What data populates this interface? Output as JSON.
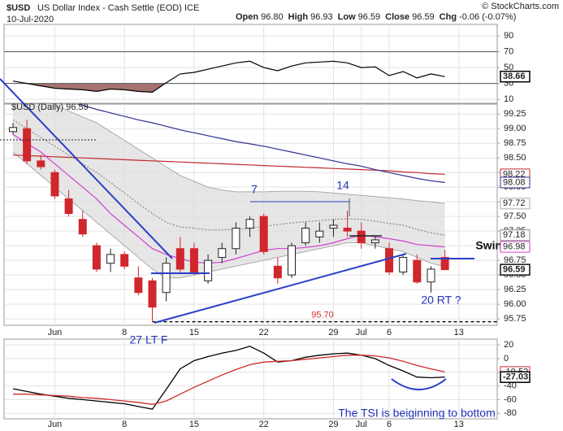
{
  "header": {
    "symbol": "$USD",
    "name": "US Dollar Index - Cash Settle (EOD) ICE",
    "date": "10-Jul-2020",
    "quote": [
      {
        "label": "Open",
        "value": "96.80"
      },
      {
        "label": "High",
        "value": "96.93"
      },
      {
        "label": "Low",
        "value": "96.59"
      },
      {
        "label": "Close",
        "value": "96.59"
      },
      {
        "label": "Chg",
        "value": "-0.06 (-0.07%)"
      }
    ],
    "source": "© StockCharts.com"
  },
  "chart_data": [
    {
      "type": "line",
      "color": "#000000",
      "fill_color": "#a5736f",
      "level_color": "#555555",
      "values": [
        33,
        30,
        27,
        24,
        23,
        22,
        20,
        23,
        22,
        20,
        19,
        31,
        42,
        44,
        48,
        52,
        56,
        58,
        50,
        46,
        52,
        56,
        57,
        58,
        56,
        50,
        51,
        40,
        45,
        37,
        42,
        38.66,
        null
      ],
      "oversold": 30,
      "overbought": 70,
      "ylim": [
        5,
        104.5
      ],
      "yticks": [
        90,
        70,
        50,
        30,
        10
      ],
      "grid": true
    },
    {
      "type": "candlestick",
      "legend": "$USD (Daily) 96.59",
      "categories": [
        null,
        null,
        null,
        "Jun",
        null,
        null,
        null,
        null,
        "8",
        null,
        null,
        null,
        null,
        "15",
        null,
        null,
        null,
        null,
        "22",
        null,
        null,
        null,
        null,
        "29",
        null,
        "Jul",
        null,
        "6",
        null,
        null,
        null,
        null,
        "13"
      ],
      "open": [
        98.95,
        99.0,
        98.45,
        98.25,
        97.8,
        97.45,
        97.0,
        96.7,
        96.85,
        96.45,
        96.4,
        96.2,
        96.95,
        96.95,
        96.4,
        96.8,
        96.95,
        97.3,
        97.5,
        96.65,
        96.5,
        97.05,
        97.15,
        97.3,
        97.3,
        97.25,
        97.05,
        96.95,
        96.55,
        96.75,
        96.38,
        96.8,
        null
      ],
      "high": [
        99.1,
        99.15,
        98.55,
        98.3,
        97.95,
        97.6,
        97.05,
        96.95,
        96.9,
        96.65,
        96.45,
        96.8,
        97.15,
        97.05,
        96.85,
        97.05,
        97.4,
        97.5,
        97.55,
        96.8,
        97.05,
        97.4,
        97.4,
        97.45,
        97.6,
        97.4,
        97.15,
        97.05,
        96.85,
        96.85,
        96.65,
        96.93,
        null
      ],
      "low": [
        98.9,
        98.4,
        98.3,
        97.8,
        97.5,
        97.15,
        96.55,
        96.55,
        96.6,
        96.15,
        95.7,
        96.05,
        96.55,
        96.5,
        96.35,
        96.7,
        96.85,
        97.15,
        96.85,
        96.35,
        96.45,
        97.0,
        97.05,
        97.15,
        97.15,
        96.95,
        96.95,
        96.5,
        96.5,
        96.35,
        96.2,
        96.59,
        null
      ],
      "close": [
        99.02,
        98.45,
        98.35,
        97.85,
        97.55,
        97.2,
        96.6,
        96.85,
        96.65,
        96.2,
        95.95,
        96.7,
        96.6,
        96.55,
        96.75,
        96.95,
        97.3,
        97.45,
        96.9,
        96.45,
        97.0,
        97.3,
        97.25,
        97.35,
        97.25,
        97.05,
        97.1,
        96.55,
        96.8,
        96.38,
        96.6,
        96.59,
        null
      ],
      "up_color": "#ffffff",
      "down_color": "#d0262d",
      "band": {
        "color": "#dcdcdc",
        "line_color": "#aaaaaa",
        "upper": [
          99.7,
          99.6,
          99.5,
          99.4,
          99.3,
          99.2,
          99.1,
          98.95,
          98.8,
          98.65,
          98.5,
          98.35,
          98.2,
          98.1,
          98.0,
          97.95,
          97.92,
          97.92,
          97.92,
          97.93,
          97.93,
          97.93,
          97.92,
          97.9,
          97.88,
          97.86,
          97.84,
          97.82,
          97.8,
          97.77,
          97.75,
          97.72,
          null
        ],
        "lower": [
          98.6,
          98.4,
          98.2,
          98.0,
          97.8,
          97.6,
          97.4,
          97.2,
          97.0,
          96.8,
          96.6,
          96.45,
          96.45,
          96.5,
          96.55,
          96.6,
          96.65,
          96.7,
          96.75,
          96.8,
          96.85,
          96.9,
          96.95,
          97.0,
          97.05,
          97.05,
          97.0,
          96.95,
          96.9,
          96.8,
          96.7,
          96.64,
          null
        ]
      },
      "overlays": [
        {
          "color": "#c0282d",
          "style": "solid",
          "values": [
            98.55,
            98.54,
            98.53,
            98.52,
            98.51,
            98.5,
            98.49,
            98.48,
            98.47,
            98.46,
            98.45,
            98.44,
            98.43,
            98.42,
            98.41,
            98.4,
            98.39,
            98.38,
            98.37,
            98.36,
            98.35,
            98.34,
            98.33,
            98.32,
            98.31,
            98.3,
            98.29,
            98.28,
            98.26,
            98.25,
            98.23,
            98.22,
            null
          ]
        },
        {
          "color": "#2b2f8f",
          "style": "solid",
          "values": [
            99.75,
            99.68,
            99.6,
            99.53,
            99.46,
            99.4,
            99.33,
            99.27,
            99.21,
            99.15,
            99.1,
            99.04,
            98.98,
            98.93,
            98.88,
            98.83,
            98.78,
            98.74,
            98.7,
            98.65,
            98.6,
            98.55,
            98.5,
            98.45,
            98.4,
            98.36,
            98.3,
            98.25,
            98.2,
            98.15,
            98.11,
            98.08,
            null
          ]
        },
        {
          "color": "#888888",
          "style": "dotted",
          "values": [
            99.15,
            99.0,
            98.85,
            98.7,
            98.55,
            98.4,
            98.25,
            98.08,
            97.9,
            97.72,
            97.55,
            97.4,
            97.32,
            97.3,
            97.27,
            97.27,
            97.28,
            97.3,
            97.33,
            97.36,
            97.39,
            97.41,
            97.43,
            97.45,
            97.46,
            97.45,
            97.42,
            97.38,
            97.35,
            97.28,
            97.22,
            97.18,
            null
          ]
        },
        {
          "color": "#d23fd0",
          "style": "solid",
          "values": [
            98.9,
            98.75,
            98.6,
            98.4,
            98.2,
            98.0,
            97.8,
            97.55,
            97.35,
            97.15,
            96.95,
            96.85,
            96.78,
            96.72,
            96.7,
            96.72,
            96.78,
            96.85,
            96.92,
            96.95,
            96.95,
            96.97,
            97.0,
            97.05,
            97.12,
            97.18,
            97.15,
            97.12,
            97.08,
            97.02,
            97.0,
            96.98,
            null
          ]
        }
      ],
      "support": {
        "value": 95.7,
        "label": "95.70",
        "color": "#cc3333"
      },
      "annotations": [
        "7",
        "14",
        "Swing",
        "20 RT ?",
        "27 LT F"
      ],
      "ylim": [
        95.64,
        99.42
      ],
      "yticks": [
        99.25,
        {
          "value": 99,
          "label": "99.00"
        },
        98.75,
        {
          "value": 98.5,
          "label": "98.50"
        },
        98.25,
        {
          "value": 98,
          "label": "98.00"
        },
        97.75,
        {
          "value": 97.5,
          "label": "97.50"
        },
        97.25,
        {
          "value": 97,
          "label": "97.00"
        },
        96.75,
        {
          "value": 96.5,
          "label": "96.50"
        },
        96.25,
        {
          "value": 96,
          "label": "96.00"
        },
        95.75
      ],
      "grid": true
    },
    {
      "type": "line",
      "annotation": "The TSI is beiginning to bottom",
      "series": [
        {
          "color": "#000000",
          "values": [
            -44,
            -48,
            -52,
            -55,
            -58,
            -60,
            -62,
            -64,
            -66,
            -70,
            -74,
            -45,
            -15,
            -3,
            3,
            8,
            12,
            18,
            8,
            -5,
            -3,
            2,
            5,
            7,
            8,
            5,
            0,
            -10,
            -18,
            -27,
            -28,
            -27.03,
            null
          ]
        },
        {
          "color": "#d02828",
          "values": [
            -52,
            -52,
            -53,
            -54,
            -55,
            -57,
            -58,
            -60,
            -62,
            -64,
            -67,
            -62,
            -52,
            -42,
            -33,
            -24,
            -16,
            -9,
            -5,
            -4,
            -3,
            -1,
            1,
            3,
            5,
            5,
            4,
            1,
            -4,
            -10,
            -15,
            -19.52,
            null
          ]
        }
      ],
      "ylim": [
        -88,
        28.5
      ],
      "yticks": [
        20,
        0,
        -20,
        -40,
        -60,
        -80
      ],
      "grid": true
    }
  ]
}
